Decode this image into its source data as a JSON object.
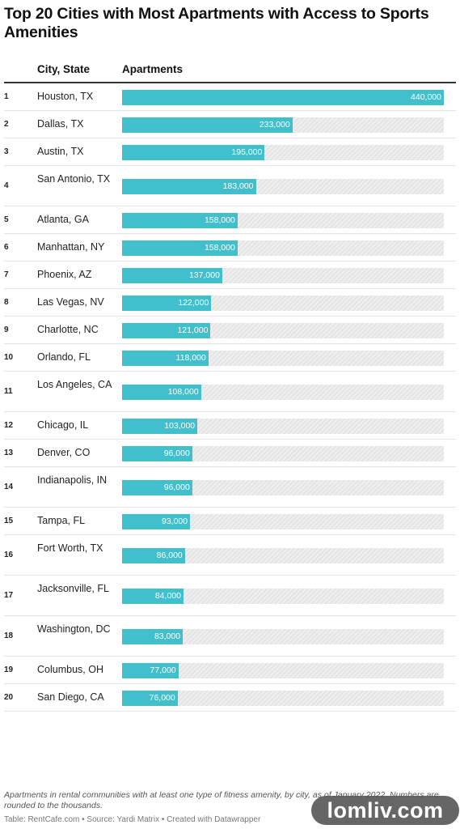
{
  "title": "Top 20 Cities with Most Apartments with Access to Sports Amenities",
  "columns": {
    "city": "City, State",
    "apartments": "Apartments"
  },
  "notes": "Apartments in rental communities with at least one type of fitness amenity, by city, as of January 2022. Numbers are rounded to the thousands.",
  "source": "Table: RentCafe.com • Source: Yardi Matrix • Created with Datawrapper",
  "watermark": "lomliv.com",
  "colors": {
    "bar": "#41bfcc",
    "track": "#e6e6e6",
    "rule": "#333333"
  },
  "chart_data": {
    "type": "bar",
    "orientation": "horizontal",
    "max": 440000,
    "rows": [
      {
        "rank": "1",
        "city": "Houston, TX",
        "value": 440000,
        "label": "440,000"
      },
      {
        "rank": "2",
        "city": "Dallas, TX",
        "value": 233000,
        "label": "233,000"
      },
      {
        "rank": "3",
        "city": "Austin, TX",
        "value": 195000,
        "label": "195,000"
      },
      {
        "rank": "4",
        "city": "San Antonio, TX",
        "value": 183000,
        "label": "183,000"
      },
      {
        "rank": "5",
        "city": "Atlanta, GA",
        "value": 158000,
        "label": "158,000"
      },
      {
        "rank": "6",
        "city": "Manhattan, NY",
        "value": 158000,
        "label": "158,000"
      },
      {
        "rank": "7",
        "city": "Phoenix, AZ",
        "value": 137000,
        "label": "137,000"
      },
      {
        "rank": "8",
        "city": "Las Vegas, NV",
        "value": 122000,
        "label": "122,000"
      },
      {
        "rank": "9",
        "city": "Charlotte, NC",
        "value": 121000,
        "label": "121,000"
      },
      {
        "rank": "10",
        "city": "Orlando, FL",
        "value": 118000,
        "label": "118,000"
      },
      {
        "rank": "11",
        "city": "Los Angeles, CA",
        "value": 108000,
        "label": "108,000"
      },
      {
        "rank": "12",
        "city": "Chicago, IL",
        "value": 103000,
        "label": "103,000"
      },
      {
        "rank": "13",
        "city": "Denver, CO",
        "value": 96000,
        "label": "96,000"
      },
      {
        "rank": "14",
        "city": "Indianapolis, IN",
        "value": 96000,
        "label": "96,000"
      },
      {
        "rank": "15",
        "city": "Tampa, FL",
        "value": 93000,
        "label": "93,000"
      },
      {
        "rank": "16",
        "city": "Fort Worth, TX",
        "value": 86000,
        "label": "86,000"
      },
      {
        "rank": "17",
        "city": "Jacksonville, FL",
        "value": 84000,
        "label": "84,000"
      },
      {
        "rank": "18",
        "city": "Washington, DC",
        "value": 83000,
        "label": "83,000"
      },
      {
        "rank": "19",
        "city": "Columbus, OH",
        "value": 77000,
        "label": "77,000"
      },
      {
        "rank": "20",
        "city": "San Diego, CA",
        "value": 76000,
        "label": "76,000"
      }
    ]
  }
}
